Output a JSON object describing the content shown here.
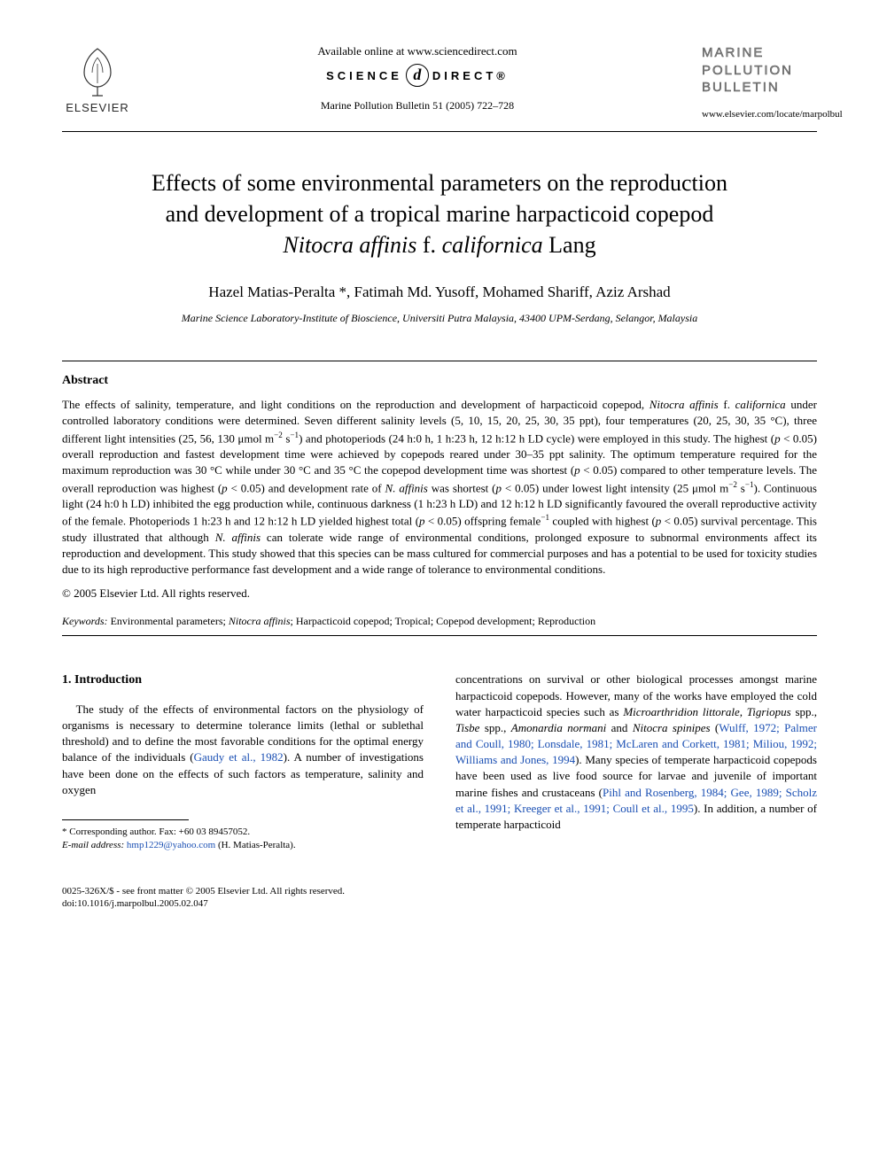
{
  "header": {
    "publisher_name": "ELSEVIER",
    "available_online": "Available online at www.sciencedirect.com",
    "sd_left": "SCIENCE",
    "sd_right": "DIRECT®",
    "sd_glyph": "d",
    "citation": "Marine Pollution Bulletin 51 (2005) 722–728",
    "journal_title_l1": "MARINE",
    "journal_title_l2": "POLLUTION",
    "journal_title_l3": "BULLETIN",
    "journal_url": "www.elsevier.com/locate/marpolbul"
  },
  "title": {
    "line1": "Effects of some environmental parameters on the reproduction",
    "line2": "and development of a tropical marine harpacticoid copepod",
    "line3_italic": "Nitocra affinis",
    "line3_mid": " f. ",
    "line3_italic2": "californica",
    "line3_end": " Lang"
  },
  "authors": "Hazel Matias-Peralta *, Fatimah Md. Yusoff, Mohamed Shariff, Aziz Arshad",
  "affiliation": "Marine Science Laboratory-Institute of Bioscience, Universiti Putra Malaysia, 43400 UPM-Serdang, Selangor, Malaysia",
  "abstract": {
    "heading": "Abstract",
    "body_parts": [
      {
        "t": "The effects of salinity, temperature, and light conditions on the reproduction and development of harpacticoid copepod, "
      },
      {
        "t": "Nitocra affinis",
        "italic": true
      },
      {
        "t": " f. "
      },
      {
        "t": "californica",
        "italic": true
      },
      {
        "t": " under controlled laboratory conditions were determined. Seven different salinity levels (5, 10, 15, 20, 25, 30, 35 ppt), four temperatures (20, 25, 30, 35 °C), three different light intensities (25, 56, 130 μmol m"
      },
      {
        "t": "−2",
        "sup": true
      },
      {
        "t": " s"
      },
      {
        "t": "−1",
        "sup": true
      },
      {
        "t": ") and photoperiods (24 h:0 h, 1 h:23 h, 12 h:12 h LD cycle) were employed in this study. The highest ("
      },
      {
        "t": "p",
        "italic": true
      },
      {
        "t": " < 0.05) overall reproduction and fastest development time were achieved by copepods reared under 30–35 ppt salinity. The optimum temperature required for the maximum reproduction was 30 °C while under 30 °C and 35 °C the copepod development time was shortest ("
      },
      {
        "t": "p",
        "italic": true
      },
      {
        "t": " < 0.05) compared to other temperature levels. The overall reproduction was highest ("
      },
      {
        "t": "p",
        "italic": true
      },
      {
        "t": " < 0.05) and development rate of "
      },
      {
        "t": "N. affinis",
        "italic": true
      },
      {
        "t": " was shortest ("
      },
      {
        "t": "p",
        "italic": true
      },
      {
        "t": " < 0.05) under lowest light intensity (25 μmol m"
      },
      {
        "t": "−2",
        "sup": true
      },
      {
        "t": " s"
      },
      {
        "t": "−1",
        "sup": true
      },
      {
        "t": "). Continuous light (24 h:0 h LD) inhibited the egg production while, continuous darkness (1 h:23 h LD) and 12 h:12 h LD significantly favoured the overall reproductive activity of the female. Photoperiods 1 h:23 h and 12 h:12 h LD yielded highest total ("
      },
      {
        "t": "p",
        "italic": true
      },
      {
        "t": " < 0.05) offspring female"
      },
      {
        "t": "−1",
        "sup": true
      },
      {
        "t": " coupled with highest ("
      },
      {
        "t": "p",
        "italic": true
      },
      {
        "t": " < 0.05) survival percentage. This study illustrated that although "
      },
      {
        "t": "N. affinis",
        "italic": true
      },
      {
        "t": " can tolerate wide range of environmental conditions, prolonged exposure to subnormal environments affect its reproduction and development. This study showed that this species can be mass cultured for commercial purposes and has a potential to be used for toxicity studies due to its high reproductive performance fast development and a wide range of tolerance to environmental conditions."
      }
    ],
    "copyright": "© 2005 Elsevier Ltd. All rights reserved."
  },
  "keywords": {
    "label": "Keywords:",
    "text_parts": [
      {
        "t": " Environmental parameters; "
      },
      {
        "t": "Nitocra affinis",
        "italic": true
      },
      {
        "t": "; Harpacticoid copepod; Tropical; Copepod development; Reproduction"
      }
    ]
  },
  "intro": {
    "heading": "1. Introduction",
    "col1_parts": [
      {
        "t": "The study of the effects of environmental factors on the physiology of organisms is necessary to determine tolerance limits (lethal or sublethal threshold) and to define the most favorable conditions for the optimal energy balance of the individuals ("
      },
      {
        "t": "Gaudy et al., 1982",
        "cite": true
      },
      {
        "t": "). A number of investigations have been done on the effects of such factors as temperature, salinity and oxygen"
      }
    ],
    "col2_parts": [
      {
        "t": "concentrations on survival or other biological processes amongst marine harpacticoid copepods. However, many of the works have employed the cold water harpacticoid species such as "
      },
      {
        "t": "Microarthridion littorale, Tigriopus",
        "italic": true
      },
      {
        "t": " spp., "
      },
      {
        "t": "Tisbe",
        "italic": true
      },
      {
        "t": " spp., "
      },
      {
        "t": "Amonardia normani",
        "italic": true
      },
      {
        "t": " and "
      },
      {
        "t": "Nitocra spinipes",
        "italic": true
      },
      {
        "t": " ("
      },
      {
        "t": "Wulff, 1972; Palmer and Coull, 1980; Lonsdale, 1981; McLaren and Corkett, 1981; Miliou, 1992; Williams and Jones, 1994",
        "cite": true
      },
      {
        "t": "). Many species of temperate harpacticoid copepods have been used as live food source for larvae and juvenile of important marine fishes and crustaceans ("
      },
      {
        "t": "Pihl and Rosenberg, 1984; Gee, 1989; Scholz et al., 1991; Kreeger et al., 1991; Coull et al., 1995",
        "cite": true
      },
      {
        "t": "). In addition, a number of temperate harpacticoid"
      }
    ]
  },
  "footnote": {
    "corresponding": "* Corresponding author. Fax: +60 03 89457052.",
    "email_label": "E-mail address:",
    "email": "hmp1229@yahoo.com",
    "email_suffix": " (H. Matias-Peralta)."
  },
  "bottom": {
    "line1": "0025-326X/$ - see front matter © 2005 Elsevier Ltd. All rights reserved.",
    "line2": "doi:10.1016/j.marpolbul.2005.02.047"
  },
  "colors": {
    "text": "#000000",
    "cite": "#1a4fb3",
    "journal_outline": "#888888",
    "background": "#ffffff"
  },
  "typography": {
    "body_font": "Georgia, Times New Roman, serif",
    "title_size_pt": 26,
    "authors_size_pt": 17,
    "body_size_pt": 13,
    "footnote_size_pt": 11
  }
}
